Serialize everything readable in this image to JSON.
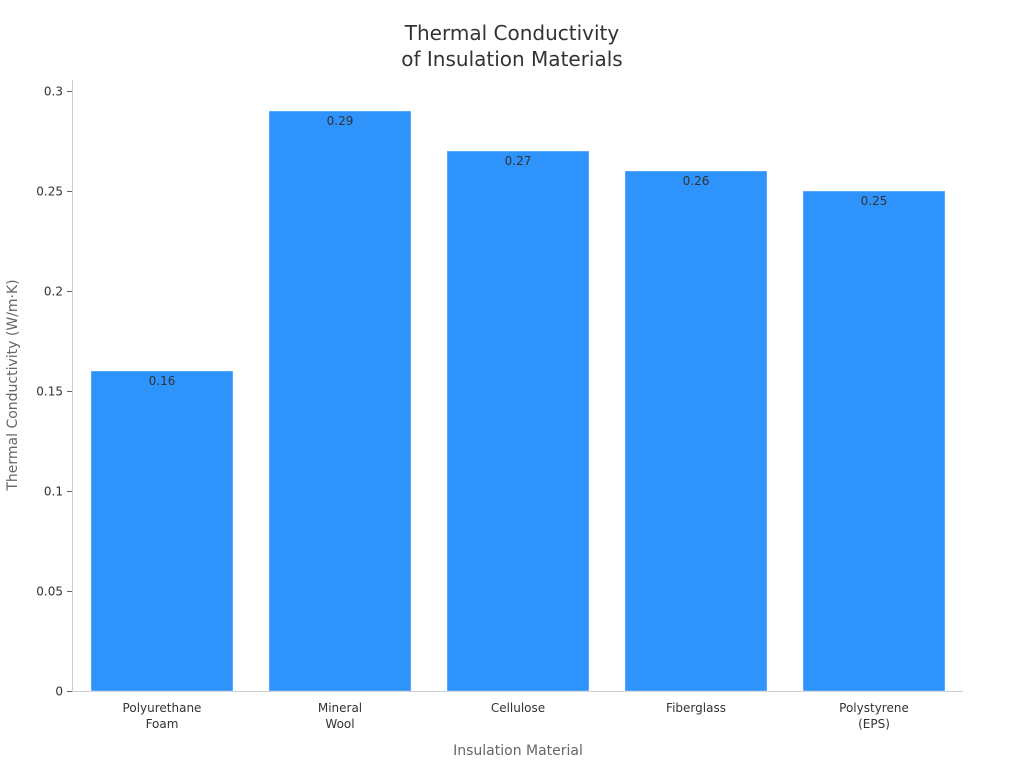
{
  "chart_data": {
    "type": "bar",
    "title": [
      "Thermal Conductivity",
      "of Insulation Materials"
    ],
    "xlabel": "Insulation Material",
    "ylabel": "Thermal Conductivity (W/m·K)",
    "categories": [
      [
        "Polyurethane",
        "Foam"
      ],
      [
        "Mineral",
        "Wool"
      ],
      [
        "Cellulose"
      ],
      [
        "Fiberglass"
      ],
      [
        "Polystyrene",
        "(EPS)"
      ]
    ],
    "values": [
      0.16,
      0.29,
      0.27,
      0.26,
      0.25
    ],
    "data_labels": [
      "0.16",
      "0.29",
      "0.27",
      "0.26",
      "0.25"
    ],
    "ylim": [
      0,
      0.3
    ],
    "yticks": [
      0,
      0.05,
      0.1,
      0.15,
      0.2,
      0.25,
      0.3
    ],
    "ytick_labels": [
      "0",
      "0.05",
      "0.1",
      "0.15",
      "0.2",
      "0.25",
      "0.3"
    ],
    "grid": false,
    "bar_color": "#2e93fa"
  }
}
